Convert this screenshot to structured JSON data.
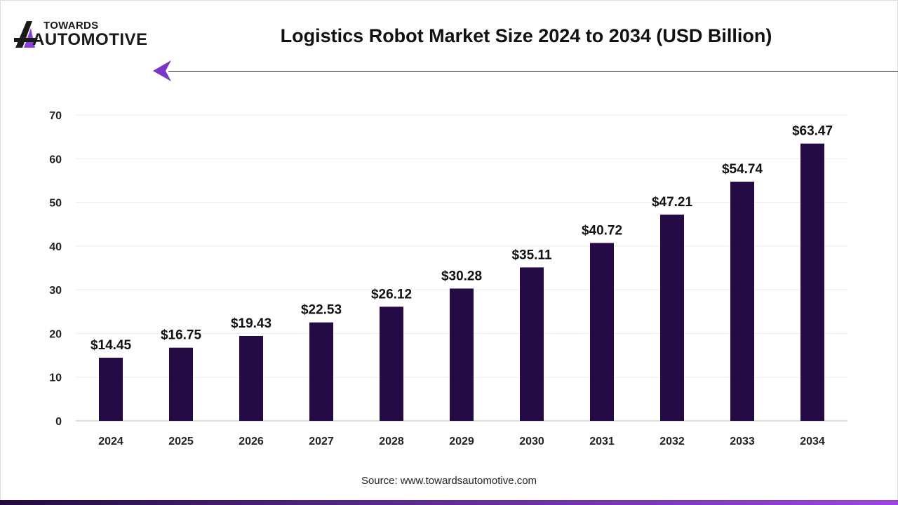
{
  "header": {
    "logo_top": "TOWARDS",
    "logo_bottom": "AUTOMOTIVE",
    "title": "Logistics Robot Market Size 2024 to 2034 (USD Billion)"
  },
  "footer": {
    "source": "Source: www.towardsautomotive.com"
  },
  "colors": {
    "bar": "#250b45",
    "accent": "#8a3fd6"
  },
  "chart_data": {
    "type": "bar",
    "title": "Logistics Robot Market Size 2024 to 2034 (USD Billion)",
    "categories": [
      "2024",
      "2025",
      "2026",
      "2027",
      "2028",
      "2029",
      "2030",
      "2031",
      "2032",
      "2033",
      "2034"
    ],
    "values": [
      14.45,
      16.75,
      19.43,
      22.53,
      26.12,
      30.28,
      35.11,
      40.72,
      47.21,
      54.74,
      63.47
    ],
    "data_labels": [
      "$14.45",
      "$16.75",
      "$19.43",
      "$22.53",
      "$26.12",
      "$30.28",
      "$35.11",
      "$40.72",
      "$47.21",
      "$54.74",
      "$63.47"
    ],
    "yticks": [
      "0",
      "10",
      "20",
      "30",
      "40",
      "50",
      "60",
      "70"
    ],
    "ylim": [
      0,
      70
    ],
    "grid": true,
    "xlabel": "",
    "ylabel": ""
  }
}
